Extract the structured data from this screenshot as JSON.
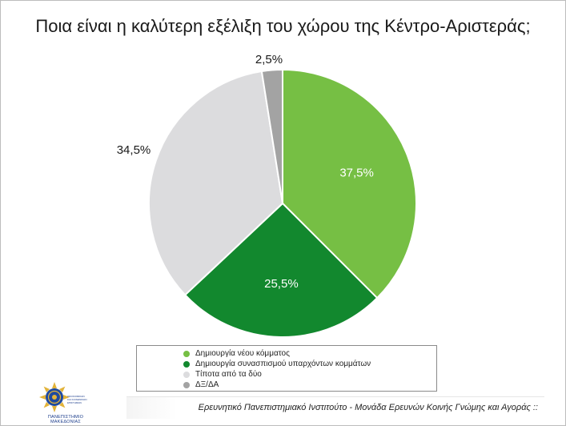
{
  "title": "Ποια είναι η καλύτερη εξέλιξη του χώρου της Κέντρο-Αριστεράς;",
  "chart_data": {
    "type": "pie",
    "title": "Ποια είναι η καλύτερη εξέλιξη του χώρου της Κέντρο-Αριστεράς;",
    "slices": [
      {
        "label": "Δημιουργία νέου κόμματος",
        "value": 37.5,
        "display": "37,5%",
        "color": "#76bf44"
      },
      {
        "label": "Δημιουργία συνασπισμού υπαρχόντων κομμάτων",
        "value": 25.5,
        "display": "25,5%",
        "color": "#12882e"
      },
      {
        "label": "Τίποτα από τα δύο",
        "value": 34.5,
        "display": "34,5%",
        "color": "#dcdcde"
      },
      {
        "label": "ΔΞ/ΔΑ",
        "value": 2.5,
        "display": "2,5%",
        "color": "#a3a3a3"
      }
    ],
    "legend_position": "bottom"
  },
  "footer": {
    "text": "Ερευνητικό Πανεπιστημιακό Ινστιτούτο - Μονάδα Ερευνών Κοινής Γνώμης και Αγοράς ::"
  },
  "logo": {
    "caption_line1": "ΠΑΝΕΠΙΣΤΗΜΙΟ",
    "caption_line2": "ΜΑΚΕΔΟΝΙΑΣ",
    "side_line1": "ΟΙΚΟΝΟΜΙΚΩΝ",
    "side_line2": "ΚΑΙ ΚΟΙΝΩΝΙΚΩΝ",
    "side_line3": "ΕΠΙΣΤΗΜΩΝ"
  }
}
